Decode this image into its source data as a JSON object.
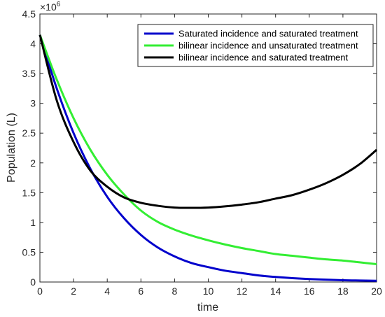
{
  "chart_data": {
    "type": "line",
    "title": "",
    "xlabel": "time",
    "ylabel": "Population (L)",
    "xlim": [
      0,
      20
    ],
    "ylim": [
      0,
      4.5
    ],
    "y_multiplier": "×10",
    "y_multiplier_exp": "6",
    "xticks": [
      "0",
      "2",
      "4",
      "6",
      "8",
      "10",
      "12",
      "14",
      "16",
      "18",
      "20"
    ],
    "yticks": [
      "0",
      "0.5",
      "1",
      "1.5",
      "2",
      "2.5",
      "3",
      "3.5",
      "4",
      "4.5"
    ],
    "grid": false,
    "legend_position": "top-right",
    "series": [
      {
        "name": "Saturated incidence and saturated treatment",
        "color": "#0000cc",
        "x": [
          0,
          1,
          2,
          3,
          4,
          5,
          6,
          7,
          8,
          9,
          10,
          11,
          12,
          13,
          14,
          15,
          16,
          17,
          18,
          19,
          20
        ],
        "y": [
          4.15,
          3.25,
          2.5,
          1.9,
          1.43,
          1.07,
          0.79,
          0.58,
          0.43,
          0.32,
          0.25,
          0.19,
          0.15,
          0.11,
          0.085,
          0.065,
          0.05,
          0.04,
          0.03,
          0.025,
          0.02
        ]
      },
      {
        "name": "bilinear incidence and unsaturated treatment",
        "color": "#33ee33",
        "x": [
          0,
          1,
          2,
          3,
          4,
          5,
          6,
          7,
          8,
          9,
          10,
          11,
          12,
          13,
          14,
          15,
          16,
          17,
          18,
          19,
          20
        ],
        "y": [
          4.15,
          3.4,
          2.75,
          2.22,
          1.8,
          1.47,
          1.2,
          1.01,
          0.88,
          0.78,
          0.7,
          0.63,
          0.57,
          0.52,
          0.47,
          0.44,
          0.41,
          0.38,
          0.36,
          0.33,
          0.3
        ]
      },
      {
        "name": "bilinear incidence and saturated treatment",
        "color": "#000000",
        "x": [
          0,
          1,
          2,
          3,
          4,
          5,
          6,
          7,
          8,
          9,
          10,
          11,
          12,
          13,
          14,
          15,
          16,
          17,
          18,
          19,
          20
        ],
        "y": [
          4.15,
          3.05,
          2.35,
          1.87,
          1.6,
          1.42,
          1.33,
          1.28,
          1.25,
          1.245,
          1.25,
          1.27,
          1.3,
          1.34,
          1.4,
          1.46,
          1.55,
          1.66,
          1.8,
          1.98,
          2.22
        ]
      }
    ]
  }
}
